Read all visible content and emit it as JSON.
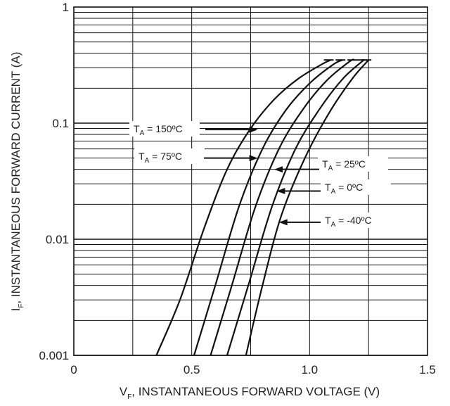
{
  "chart_data": {
    "type": "line",
    "xlabel": "V",
    "xlabel_sub": "F",
    "xlabel_rest": ", INSTANTANEOUS FORWARD VOLTAGE (V)",
    "ylabel": "I",
    "ylabel_sub": "F",
    "ylabel_rest": ", INSTANTANEOUS FORWARD CURRENT (A)",
    "xlim": [
      0,
      1.5
    ],
    "ylim": [
      0.001,
      1
    ],
    "yscale": "log",
    "grid": true,
    "x_ticks": [
      {
        "value": 0,
        "label": "0"
      },
      {
        "value": 0.5,
        "label": "0.5"
      },
      {
        "value": 1.0,
        "label": "1.0"
      },
      {
        "value": 1.5,
        "label": "1.5"
      }
    ],
    "y_ticks": [
      {
        "value": 1,
        "label": "1"
      },
      {
        "value": 0.1,
        "label": "0.1"
      },
      {
        "value": 0.01,
        "label": "0.01"
      },
      {
        "value": 0.001,
        "label": "0.001"
      }
    ],
    "series": [
      {
        "name": "T_A = 150ºC",
        "label_main": "T",
        "label_sub": "A",
        "label_rest": " = 150ºC",
        "arrow_target": [
          0.78,
          0.088
        ],
        "points": [
          [
            0.35,
            0.001
          ],
          [
            0.45,
            0.003
          ],
          [
            0.55,
            0.012
          ],
          [
            0.65,
            0.04
          ],
          [
            0.75,
            0.09
          ],
          [
            0.85,
            0.16
          ],
          [
            0.95,
            0.24
          ],
          [
            1.05,
            0.32
          ],
          [
            1.09,
            0.35
          ]
        ]
      },
      {
        "name": "T_A = 75ºC",
        "label_main": "T",
        "label_sub": "A",
        "label_rest": " = 75ºC",
        "arrow_target": [
          0.78,
          0.05
        ],
        "points": [
          [
            0.51,
            0.001
          ],
          [
            0.6,
            0.004
          ],
          [
            0.7,
            0.019
          ],
          [
            0.8,
            0.06
          ],
          [
            0.9,
            0.13
          ],
          [
            1.0,
            0.22
          ],
          [
            1.1,
            0.32
          ],
          [
            1.14,
            0.35
          ]
        ]
      },
      {
        "name": "T_A = 25ºC",
        "label_main": "T",
        "label_sub": "A",
        "label_rest": " = 25ºC",
        "arrow_target": [
          0.85,
          0.04
        ],
        "points": [
          [
            0.58,
            0.001
          ],
          [
            0.67,
            0.004
          ],
          [
            0.77,
            0.019
          ],
          [
            0.87,
            0.06
          ],
          [
            0.97,
            0.13
          ],
          [
            1.07,
            0.23
          ],
          [
            1.17,
            0.34
          ],
          [
            1.19,
            0.35
          ]
        ]
      },
      {
        "name": "T_A = 0ºC",
        "label_main": "T",
        "label_sub": "A",
        "label_rest": " = 0ºC",
        "arrow_target": [
          0.86,
          0.026
        ],
        "points": [
          [
            0.65,
            0.001
          ],
          [
            0.74,
            0.004
          ],
          [
            0.84,
            0.019
          ],
          [
            0.94,
            0.06
          ],
          [
            1.04,
            0.13
          ],
          [
            1.14,
            0.24
          ],
          [
            1.23,
            0.35
          ]
        ]
      },
      {
        "name": "T_A = -40ºC",
        "label_main": "T",
        "label_sub": "A",
        "label_rest": " = -40ºC",
        "arrow_target": [
          0.87,
          0.014
        ],
        "points": [
          [
            0.73,
            0.001
          ],
          [
            0.8,
            0.004
          ],
          [
            0.88,
            0.016
          ],
          [
            0.98,
            0.05
          ],
          [
            1.08,
            0.12
          ],
          [
            1.18,
            0.24
          ],
          [
            1.25,
            0.35
          ]
        ]
      }
    ]
  }
}
